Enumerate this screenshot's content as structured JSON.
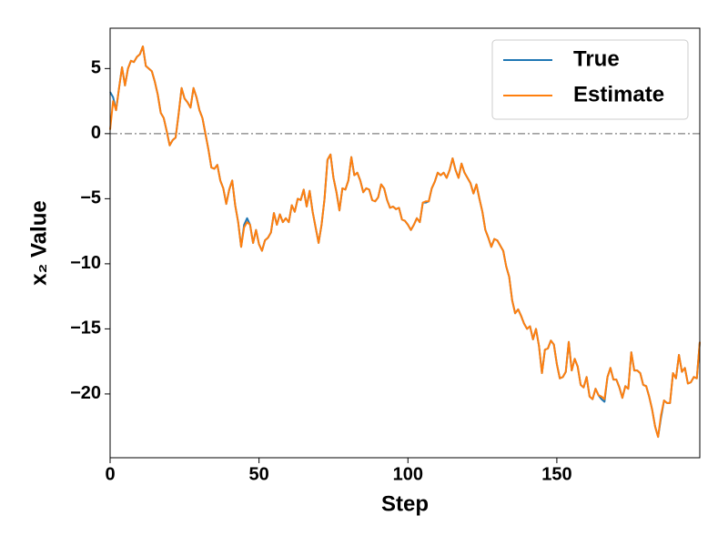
{
  "chart_data": {
    "type": "line",
    "xlabel": "Step",
    "ylabel": "x₂ Value",
    "x": [
      0,
      1,
      2,
      3,
      4,
      5,
      6,
      7,
      8,
      9,
      10,
      11,
      12,
      13,
      14,
      15,
      16,
      17,
      18,
      19,
      20,
      21,
      22,
      23,
      24,
      25,
      26,
      27,
      28,
      29,
      30,
      31,
      32,
      33,
      34,
      35,
      36,
      37,
      38,
      39,
      40,
      41,
      42,
      43,
      44,
      45,
      46,
      47,
      48,
      49,
      50,
      51,
      52,
      53,
      54,
      55,
      56,
      57,
      58,
      59,
      60,
      61,
      62,
      63,
      64,
      65,
      66,
      67,
      68,
      69,
      70,
      71,
      72,
      73,
      74,
      75,
      76,
      77,
      78,
      79,
      80,
      81,
      82,
      83,
      84,
      85,
      86,
      87,
      88,
      89,
      90,
      91,
      92,
      93,
      94,
      95,
      96,
      97,
      98,
      99,
      100,
      101,
      102,
      103,
      104,
      105,
      106,
      107,
      108,
      109,
      110,
      111,
      112,
      113,
      114,
      115,
      116,
      117,
      118,
      119,
      120,
      121,
      122,
      123,
      124,
      125,
      126,
      127,
      128,
      129,
      130,
      131,
      132,
      133,
      134,
      135,
      136,
      137,
      138,
      139,
      140,
      141,
      142,
      143,
      144,
      145,
      146,
      147,
      148,
      149,
      150,
      151,
      152,
      153,
      154,
      155,
      156,
      157,
      158,
      159,
      160,
      161,
      162,
      163,
      164,
      165,
      166,
      167,
      168,
      169,
      170,
      171,
      172,
      173,
      174,
      175,
      176,
      177,
      178,
      179,
      180,
      181,
      182,
      183,
      184,
      185,
      186,
      187,
      188,
      189,
      190,
      191,
      192,
      193,
      194,
      195,
      196,
      197,
      198
    ],
    "series": [
      {
        "name": "True",
        "color": "#1f77b4",
        "values": [
          3.2,
          2.8,
          1.8,
          3.5,
          5.1,
          3.7,
          5.0,
          5.6,
          5.5,
          5.9,
          6.1,
          6.7,
          5.2,
          5.0,
          4.8,
          4.0,
          3.0,
          1.6,
          1.2,
          0.2,
          -0.9,
          -0.5,
          -0.3,
          1.5,
          3.5,
          2.7,
          2.4,
          2.0,
          3.5,
          2.8,
          1.8,
          1.2,
          0.0,
          -1.2,
          -2.6,
          -2.7,
          -2.4,
          -3.6,
          -4.2,
          -5.4,
          -4.3,
          -3.6,
          -5.5,
          -6.8,
          -8.7,
          -7.0,
          -6.5,
          -7.0,
          -8.4,
          -7.4,
          -8.5,
          -9.0,
          -8.2,
          -8.0,
          -7.6,
          -6.1,
          -7.0,
          -6.2,
          -6.8,
          -6.5,
          -6.8,
          -5.5,
          -6.0,
          -5.0,
          -5.1,
          -4.3,
          -5.6,
          -4.4,
          -6.0,
          -7.2,
          -8.4,
          -7.0,
          -5.0,
          -2.0,
          -1.6,
          -3.4,
          -4.5,
          -5.9,
          -4.2,
          -4.3,
          -3.6,
          -1.8,
          -3.2,
          -3.0,
          -3.6,
          -4.5,
          -4.2,
          -4.3,
          -5.1,
          -5.2,
          -4.9,
          -3.9,
          -4.2,
          -5.1,
          -5.7,
          -5.6,
          -5.8,
          -5.7,
          -6.6,
          -6.7,
          -7.0,
          -7.4,
          -7.0,
          -6.5,
          -6.8,
          -5.3,
          -5.3,
          -5.2,
          -4.2,
          -3.7,
          -3.0,
          -3.2,
          -3.0,
          -3.4,
          -2.8,
          -1.9,
          -2.8,
          -3.4,
          -2.3,
          -3.0,
          -3.4,
          -3.8,
          -4.6,
          -3.9,
          -5.0,
          -6.0,
          -7.4,
          -8.0,
          -8.7,
          -8.1,
          -8.2,
          -8.6,
          -9.0,
          -10.2,
          -11.0,
          -12.8,
          -13.8,
          -13.5,
          -14.0,
          -14.6,
          -15.0,
          -14.8,
          -15.8,
          -15.0,
          -16.3,
          -18.4,
          -16.6,
          -16.5,
          -15.9,
          -16.2,
          -17.7,
          -18.8,
          -18.7,
          -18.3,
          -16.0,
          -18.2,
          -17.3,
          -17.9,
          -19.3,
          -19.5,
          -18.7,
          -20.2,
          -20.4,
          -19.6,
          -20.1,
          -20.4,
          -20.6,
          -18.7,
          -18.0,
          -18.9,
          -18.9,
          -19.5,
          -20.3,
          -19.4,
          -19.6,
          -16.8,
          -18.2,
          -18.2,
          -18.4,
          -19.3,
          -19.4,
          -20.2,
          -21.2,
          -22.5,
          -23.3,
          -21.8,
          -20.5,
          -20.7,
          -20.7,
          -18.4,
          -18.8,
          -17.0,
          -18.3,
          -18.0,
          -19.2,
          -19.1,
          -18.7,
          -18.8,
          -16.0
        ]
      },
      {
        "name": "Estimate",
        "color": "#ff7f0e",
        "values": [
          0.3,
          2.5,
          1.8,
          3.5,
          5.1,
          3.7,
          5.0,
          5.6,
          5.5,
          5.9,
          6.1,
          6.7,
          5.2,
          5.0,
          4.8,
          4.0,
          3.0,
          1.6,
          1.2,
          0.2,
          -0.9,
          -0.5,
          -0.3,
          1.5,
          3.5,
          2.7,
          2.4,
          2.0,
          3.5,
          2.8,
          1.8,
          1.2,
          0.0,
          -1.2,
          -2.6,
          -2.7,
          -2.4,
          -3.6,
          -4.2,
          -5.4,
          -4.3,
          -3.6,
          -5.5,
          -6.8,
          -8.7,
          -7.2,
          -6.8,
          -7.0,
          -8.4,
          -7.4,
          -8.5,
          -9.0,
          -8.2,
          -8.0,
          -7.6,
          -6.1,
          -7.0,
          -6.2,
          -6.8,
          -6.5,
          -6.8,
          -5.5,
          -6.0,
          -5.0,
          -5.1,
          -4.3,
          -5.6,
          -4.4,
          -6.0,
          -7.2,
          -8.4,
          -7.0,
          -5.0,
          -2.0,
          -1.6,
          -3.4,
          -4.5,
          -5.9,
          -4.2,
          -4.3,
          -3.6,
          -1.8,
          -3.2,
          -3.0,
          -3.6,
          -4.5,
          -4.2,
          -4.3,
          -5.1,
          -5.2,
          -4.9,
          -3.9,
          -4.2,
          -5.1,
          -5.7,
          -5.6,
          -5.8,
          -5.7,
          -6.6,
          -6.7,
          -7.0,
          -7.4,
          -7.0,
          -6.5,
          -6.8,
          -5.3,
          -5.2,
          -5.2,
          -4.2,
          -3.7,
          -3.0,
          -3.2,
          -3.0,
          -3.4,
          -2.8,
          -1.9,
          -2.8,
          -3.4,
          -2.3,
          -3.0,
          -3.4,
          -3.8,
          -4.6,
          -3.9,
          -5.0,
          -6.0,
          -7.4,
          -8.0,
          -8.7,
          -8.1,
          -8.2,
          -8.6,
          -9.0,
          -10.2,
          -11.0,
          -12.8,
          -13.8,
          -13.5,
          -14.0,
          -14.6,
          -15.0,
          -14.8,
          -15.8,
          -15.0,
          -16.3,
          -18.4,
          -16.6,
          -16.5,
          -15.9,
          -16.2,
          -17.7,
          -18.8,
          -18.7,
          -18.3,
          -16.0,
          -18.2,
          -17.3,
          -17.9,
          -19.3,
          -19.5,
          -18.7,
          -20.2,
          -20.4,
          -19.6,
          -20.1,
          -20.2,
          -20.4,
          -18.7,
          -18.0,
          -18.9,
          -18.9,
          -19.5,
          -20.3,
          -19.4,
          -19.6,
          -16.8,
          -18.2,
          -18.2,
          -18.4,
          -19.3,
          -19.4,
          -20.2,
          -21.2,
          -22.5,
          -23.3,
          -21.6,
          -20.5,
          -20.7,
          -20.7,
          -18.4,
          -18.8,
          -17.0,
          -18.3,
          -18.0,
          -19.2,
          -19.1,
          -18.7,
          -18.8,
          -16.0
        ]
      }
    ],
    "hline": 0,
    "xlim": [
      0,
      198
    ],
    "ylim": [
      -24.9,
      8.1
    ],
    "xticks": [
      0,
      50,
      100,
      150
    ],
    "yticks": [
      {
        "value": -20,
        "label": "−20"
      },
      {
        "value": -15,
        "label": "−15"
      },
      {
        "value": -10,
        "label": "−10"
      },
      {
        "value": -5,
        "label": "−5"
      },
      0,
      5
    ],
    "legend": "upper right"
  }
}
